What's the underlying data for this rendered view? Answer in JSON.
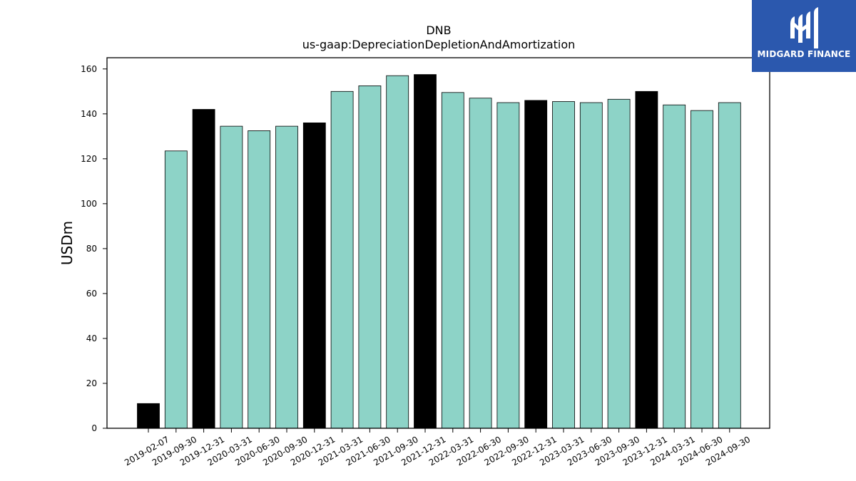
{
  "chart_data": {
    "type": "bar",
    "title": "DNB",
    "subtitle": "us-gaap:DepreciationDepletionAndAmortization",
    "xlabel": "",
    "ylabel": "USDm",
    "ylim": [
      0,
      165
    ],
    "yticks": [
      0,
      20,
      40,
      60,
      80,
      100,
      120,
      140,
      160
    ],
    "grid": false,
    "categories": [
      "2019-02-07",
      "2019-09-30",
      "2019-12-31",
      "2020-03-31",
      "2020-06-30",
      "2020-09-30",
      "2020-12-31",
      "2021-03-31",
      "2021-06-30",
      "2021-09-30",
      "2021-12-31",
      "2022-03-31",
      "2022-06-30",
      "2022-09-30",
      "2022-12-31",
      "2023-03-31",
      "2023-06-30",
      "2023-09-30",
      "2023-12-31",
      "2024-03-31",
      "2024-06-30",
      "2024-09-30"
    ],
    "values": [
      11,
      123.5,
      142,
      134.5,
      132.5,
      134.5,
      136,
      150,
      152.5,
      157,
      157.5,
      149.5,
      147,
      145,
      146,
      145.5,
      145,
      146.5,
      150,
      144,
      141.5,
      145
    ],
    "bar_colors": [
      "#000000",
      "#8dd3c7",
      "#000000",
      "#8dd3c7",
      "#8dd3c7",
      "#8dd3c7",
      "#000000",
      "#8dd3c7",
      "#8dd3c7",
      "#8dd3c7",
      "#000000",
      "#8dd3c7",
      "#8dd3c7",
      "#8dd3c7",
      "#000000",
      "#8dd3c7",
      "#8dd3c7",
      "#8dd3c7",
      "#000000",
      "#8dd3c7",
      "#8dd3c7",
      "#8dd3c7"
    ]
  },
  "logo": {
    "text": "MIDGARD FINANCE",
    "background": "#2b58ae",
    "icon": "midgard-m-icon"
  }
}
